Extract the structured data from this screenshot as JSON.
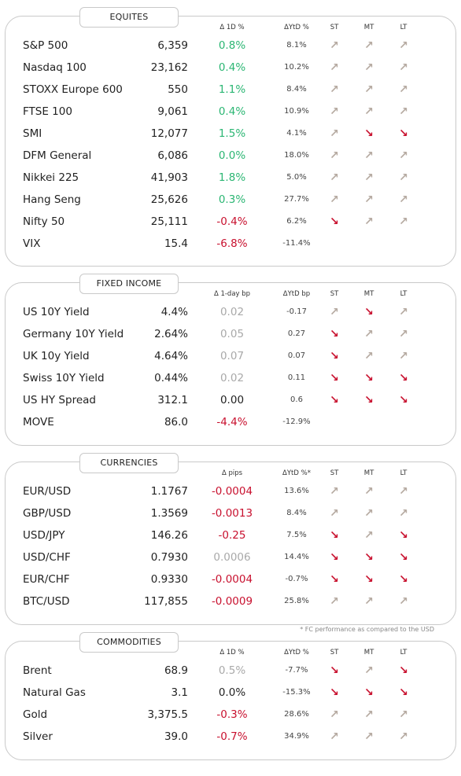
{
  "colors": {
    "positive": "#2bb673",
    "negative": "#c8102e",
    "neutral": "#a9a9a9",
    "arrow_up": "#b5a9a0",
    "arrow_down": "#c8102e"
  },
  "sections": [
    {
      "title": "EQUITES",
      "headers": {
        "change": "Δ 1D %",
        "ytd": "ΔYtD %",
        "st": "ST",
        "mt": "MT",
        "lt": "LT"
      },
      "rows": [
        {
          "name": "S&P 500",
          "value": "6,359",
          "change": "0.8%",
          "change_tone": "pos",
          "ytd": "8.1%",
          "st": "up",
          "mt": "up",
          "lt": "up"
        },
        {
          "name": "Nasdaq 100",
          "value": "23,162",
          "change": "0.4%",
          "change_tone": "pos",
          "ytd": "10.2%",
          "st": "up",
          "mt": "up",
          "lt": "up"
        },
        {
          "name": "STOXX Europe 600",
          "value": "550",
          "change": "1.1%",
          "change_tone": "pos",
          "ytd": "8.4%",
          "st": "up",
          "mt": "up",
          "lt": "up"
        },
        {
          "name": "FTSE 100",
          "value": "9,061",
          "change": "0.4%",
          "change_tone": "pos",
          "ytd": "10.9%",
          "st": "up",
          "mt": "up",
          "lt": "up"
        },
        {
          "name": "SMI",
          "value": "12,077",
          "change": "1.5%",
          "change_tone": "pos",
          "ytd": "4.1%",
          "st": "up",
          "mt": "down",
          "lt": "down"
        },
        {
          "name": "DFM General",
          "value": "6,086",
          "change": "0.0%",
          "change_tone": "pos",
          "ytd": "18.0%",
          "st": "up",
          "mt": "up",
          "lt": "up"
        },
        {
          "name": "Nikkei 225",
          "value": "41,903",
          "change": "1.8%",
          "change_tone": "pos",
          "ytd": "5.0%",
          "st": "up",
          "mt": "up",
          "lt": "up"
        },
        {
          "name": "Hang Seng",
          "value": "25,626",
          "change": "0.3%",
          "change_tone": "pos",
          "ytd": "27.7%",
          "st": "up",
          "mt": "up",
          "lt": "up"
        },
        {
          "name": "Nifty 50",
          "value": "25,111",
          "change": "-0.4%",
          "change_tone": "neg",
          "ytd": "6.2%",
          "st": "down",
          "mt": "up",
          "lt": "up"
        },
        {
          "name": "VIX",
          "value": "15.4",
          "change": "-6.8%",
          "change_tone": "neg",
          "ytd": "-11.4%",
          "st": "",
          "mt": "",
          "lt": ""
        }
      ]
    },
    {
      "title": "FIXED INCOME",
      "headers": {
        "change": "Δ 1-day bp",
        "ytd": "ΔYtD bp",
        "st": "ST",
        "mt": "MT",
        "lt": "LT"
      },
      "rows": [
        {
          "name": "US 10Y Yield",
          "value": "4.4%",
          "change": "0.02",
          "change_tone": "neu",
          "ytd": "-0.17",
          "st": "up",
          "mt": "down",
          "lt": "up"
        },
        {
          "name": "Germany 10Y Yield",
          "value": "2.64%",
          "change": "0.05",
          "change_tone": "neu",
          "ytd": "0.27",
          "st": "down",
          "mt": "up",
          "lt": "up"
        },
        {
          "name": "UK 10y Yield",
          "value": "4.64%",
          "change": "0.07",
          "change_tone": "neu",
          "ytd": "0.07",
          "st": "down",
          "mt": "up",
          "lt": "up"
        },
        {
          "name": "Swiss 10Y Yield",
          "value": "0.44%",
          "change": "0.02",
          "change_tone": "neu",
          "ytd": "0.11",
          "st": "down",
          "mt": "down",
          "lt": "down"
        },
        {
          "name": "US HY Spread",
          "value": "312.1",
          "change": "0.00",
          "change_tone": "zero",
          "ytd": "0.6",
          "st": "down",
          "mt": "down",
          "lt": "down"
        },
        {
          "name": "MOVE",
          "value": "86.0",
          "change": "-4.4%",
          "change_tone": "neg",
          "ytd": "-12.9%",
          "st": "",
          "mt": "",
          "lt": ""
        }
      ]
    },
    {
      "title": "CURRENCIES",
      "headers": {
        "change": "Δ pips",
        "ytd": "ΔYtD %*",
        "st": "ST",
        "mt": "MT",
        "lt": "LT"
      },
      "rows": [
        {
          "name": "EUR/USD",
          "value": "1.1767",
          "change": "-0.0004",
          "change_tone": "neg",
          "ytd": "13.6%",
          "st": "up",
          "mt": "up",
          "lt": "up"
        },
        {
          "name": "GBP/USD",
          "value": "1.3569",
          "change": "-0.0013",
          "change_tone": "neg",
          "ytd": "8.4%",
          "st": "up",
          "mt": "up",
          "lt": "up"
        },
        {
          "name": "USD/JPY",
          "value": "146.26",
          "change": "-0.25",
          "change_tone": "neg",
          "ytd": "7.5%",
          "st": "down",
          "mt": "up",
          "lt": "down"
        },
        {
          "name": "USD/CHF",
          "value": "0.7930",
          "change": "0.0006",
          "change_tone": "neu",
          "ytd": "14.4%",
          "st": "down",
          "mt": "down",
          "lt": "down"
        },
        {
          "name": "EUR/CHF",
          "value": "0.9330",
          "change": "-0.0004",
          "change_tone": "neg",
          "ytd": "-0.7%",
          "st": "down",
          "mt": "down",
          "lt": "down"
        },
        {
          "name": "BTC/USD",
          "value": "117,855",
          "change": "-0.0009",
          "change_tone": "neg",
          "ytd": "25.8%",
          "st": "up",
          "mt": "up",
          "lt": "up"
        }
      ]
    },
    {
      "title": "COMMODITIES",
      "headers": {
        "change": "Δ 1D %",
        "ytd": "ΔYtD %",
        "st": "ST",
        "mt": "MT",
        "lt": "LT"
      },
      "rows": [
        {
          "name": "Brent",
          "value": "68.9",
          "change": "0.5%",
          "change_tone": "neu",
          "ytd": "-7.7%",
          "st": "down",
          "mt": "up",
          "lt": "down"
        },
        {
          "name": "Natural Gas",
          "value": "3.1",
          "change": "0.0%",
          "change_tone": "zero",
          "ytd": "-15.3%",
          "st": "down",
          "mt": "down",
          "lt": "down"
        },
        {
          "name": "Gold",
          "value": "3,375.5",
          "change": "-0.3%",
          "change_tone": "neg",
          "ytd": "28.6%",
          "st": "up",
          "mt": "up",
          "lt": "up"
        },
        {
          "name": "Silver",
          "value": "39.0",
          "change": "-0.7%",
          "change_tone": "neg",
          "ytd": "34.9%",
          "st": "up",
          "mt": "up",
          "lt": "up"
        }
      ]
    }
  ],
  "footnote": "* FC performance as compared to the USD"
}
